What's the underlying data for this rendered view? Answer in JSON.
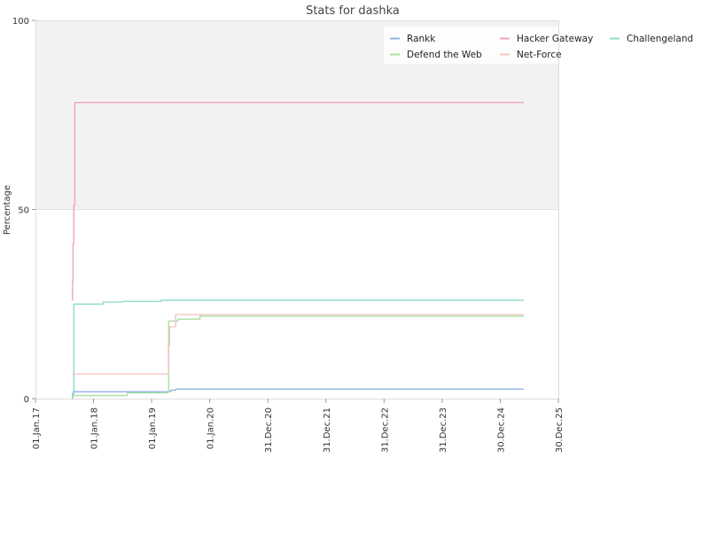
{
  "chart_data": {
    "type": "line",
    "title": "Stats for dashka",
    "xlabel": "",
    "ylabel": "Percentage",
    "xlim": [
      "2017-01-01",
      "2025-12-30"
    ],
    "ylim": [
      0,
      100
    ],
    "y_ticks": [
      0,
      50,
      100
    ],
    "x_ticks": [
      {
        "date": "2017-01-01",
        "label": "01.Jan.17"
      },
      {
        "date": "2018-01-01",
        "label": "01.Jan.18"
      },
      {
        "date": "2019-01-01",
        "label": "01.Jan.19"
      },
      {
        "date": "2020-01-01",
        "label": "01.Jan.20"
      },
      {
        "date": "2020-12-31",
        "label": "31.Dec.20"
      },
      {
        "date": "2021-12-31",
        "label": "31.Dec.21"
      },
      {
        "date": "2022-12-31",
        "label": "31.Dec.22"
      },
      {
        "date": "2023-12-31",
        "label": "31.Dec.23"
      },
      {
        "date": "2024-12-30",
        "label": "30.Dec.24"
      },
      {
        "date": "2025-12-30",
        "label": "30.Dec.25"
      }
    ],
    "shaded_band": {
      "y_from": 50,
      "y_to": 100,
      "color": "#f2f2f2"
    },
    "grid": false,
    "legend_position": "top-right",
    "series": [
      {
        "name": "Rankk",
        "color": "#8fb3e6",
        "points": [
          {
            "x": "2017-08-20",
            "y": 0
          },
          {
            "x": "2017-08-22",
            "y": 1.3
          },
          {
            "x": "2017-08-27",
            "y": 1.8
          },
          {
            "x": "2018-06-01",
            "y": 1.8
          },
          {
            "x": "2019-04-20",
            "y": 1.9
          },
          {
            "x": "2019-05-01",
            "y": 2.2
          },
          {
            "x": "2019-06-01",
            "y": 2.5
          },
          {
            "x": "2025-01-01",
            "y": 2.5
          },
          {
            "x": "2025-05-26",
            "y": 2.5
          }
        ]
      },
      {
        "name": "Hacker Gateway",
        "color": "#f2a3c0",
        "points": [
          {
            "x": "2017-08-20",
            "y": 26
          },
          {
            "x": "2017-08-22",
            "y": 31
          },
          {
            "x": "2017-08-25",
            "y": 41
          },
          {
            "x": "2017-08-30",
            "y": 51
          },
          {
            "x": "2017-09-05",
            "y": 78.3
          },
          {
            "x": "2025-05-26",
            "y": 78.3
          }
        ]
      },
      {
        "name": "Challengeland",
        "color": "#8fdccd",
        "points": [
          {
            "x": "2017-08-20",
            "y": 0
          },
          {
            "x": "2017-08-22",
            "y": 1
          },
          {
            "x": "2017-08-30",
            "y": 25
          },
          {
            "x": "2018-03-01",
            "y": 25.5
          },
          {
            "x": "2018-07-01",
            "y": 25.7
          },
          {
            "x": "2019-03-01",
            "y": 26
          },
          {
            "x": "2025-05-26",
            "y": 26
          }
        ]
      },
      {
        "name": "Defend the Web",
        "color": "#a9e0a0",
        "points": [
          {
            "x": "2017-08-20",
            "y": 0
          },
          {
            "x": "2017-08-25",
            "y": 0.8
          },
          {
            "x": "2018-08-01",
            "y": 1.5
          },
          {
            "x": "2019-04-10",
            "y": 1.7
          },
          {
            "x": "2019-04-18",
            "y": 20.5
          },
          {
            "x": "2019-06-15",
            "y": 21
          },
          {
            "x": "2019-11-01",
            "y": 21.8
          },
          {
            "x": "2025-05-26",
            "y": 21.8
          }
        ]
      },
      {
        "name": "Net-Force",
        "color": "#f3c7c4",
        "points": [
          {
            "x": "2017-08-20",
            "y": 6.5
          },
          {
            "x": "2019-04-10",
            "y": 6.5
          },
          {
            "x": "2019-04-16",
            "y": 14
          },
          {
            "x": "2019-04-24",
            "y": 19
          },
          {
            "x": "2019-06-01",
            "y": 22.2
          },
          {
            "x": "2025-05-26",
            "y": 22.2
          }
        ]
      }
    ]
  }
}
